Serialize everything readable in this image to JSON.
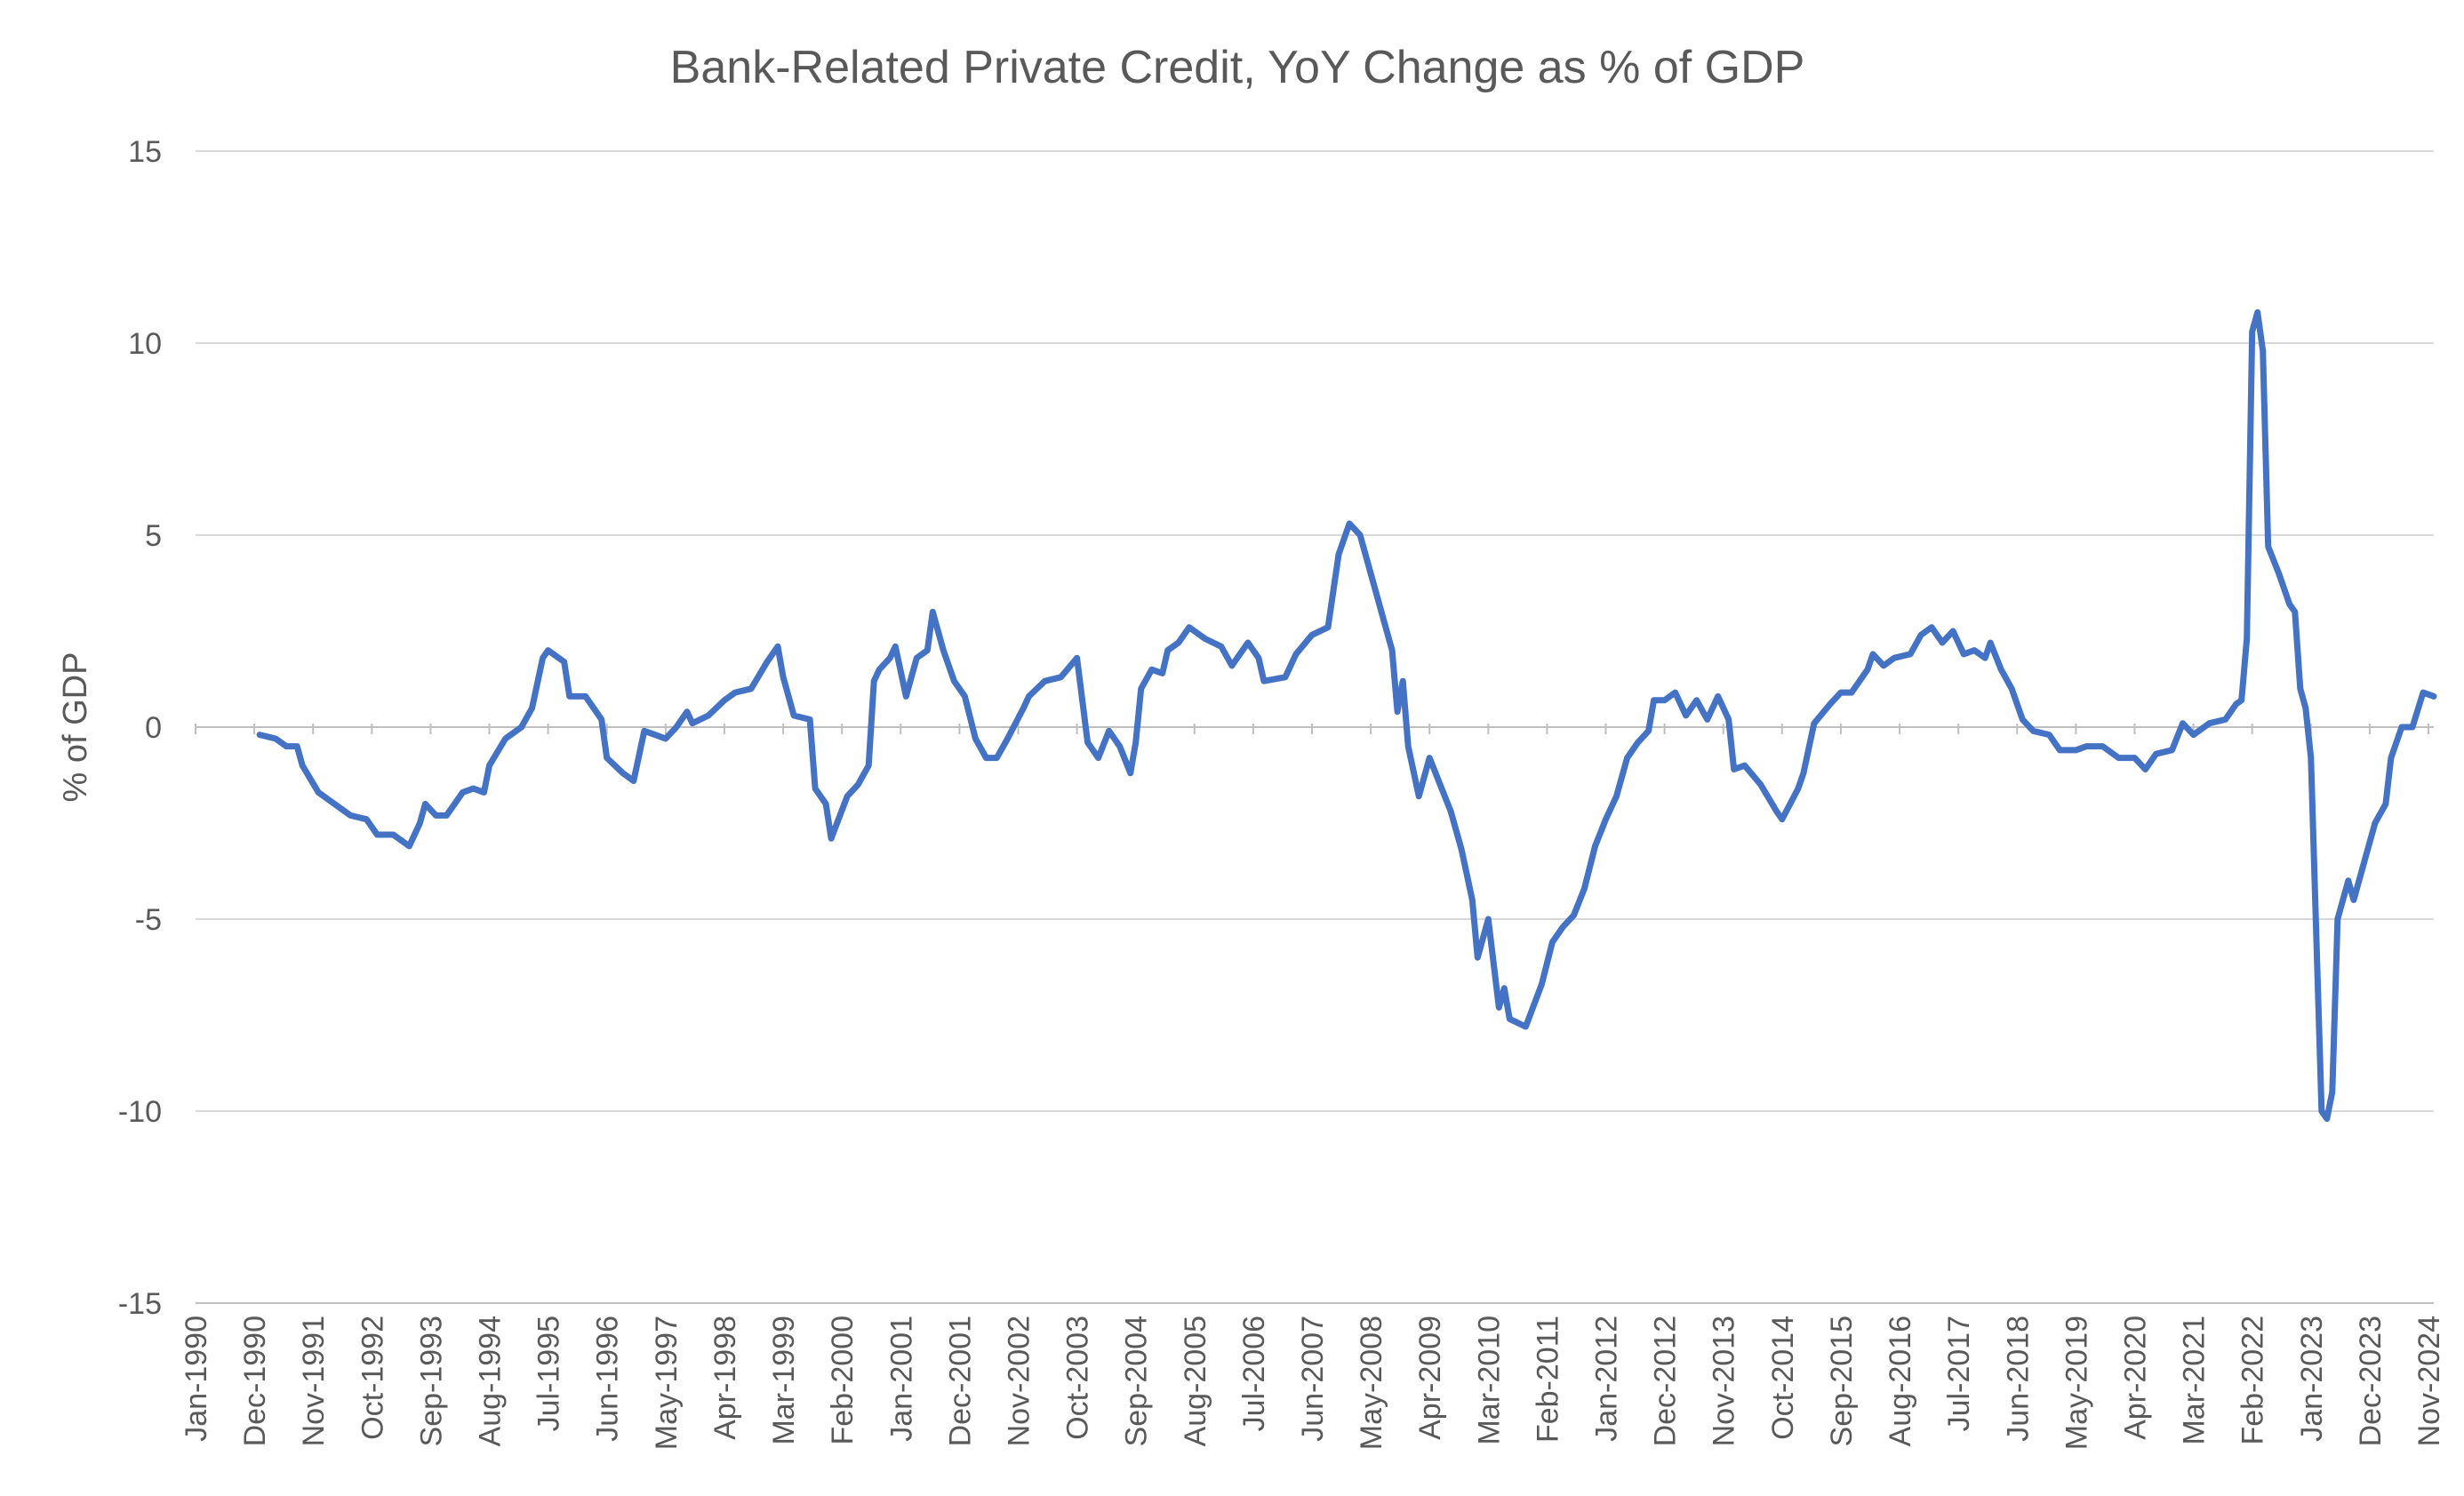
{
  "chart_data": {
    "type": "line",
    "title": "Bank-Related Private Credit, YoY Change as % of GDP",
    "xlabel": "",
    "ylabel": "% of GDP",
    "ylim": [
      -15,
      15
    ],
    "yticks": [
      15,
      10,
      5,
      0,
      -5,
      -10,
      -15
    ],
    "grid": true,
    "legend": "none",
    "x_axis": {
      "start": "Jan-1990",
      "end": "Dec-2024",
      "unit": "month"
    },
    "x_tick_labels": [
      "Jan-1990",
      "Dec-1990",
      "Nov-1991",
      "Oct-1992",
      "Sep-1993",
      "Aug-1994",
      "Jul-1995",
      "Jun-1996",
      "May-1997",
      "Apr-1998",
      "Mar-1999",
      "Feb-2000",
      "Jan-2001",
      "Dec-2001",
      "Nov-2002",
      "Oct-2003",
      "Sep-2004",
      "Aug-2005",
      "Jul-2006",
      "Jun-2007",
      "May-2008",
      "Apr-2009",
      "Mar-2010",
      "Feb-2011",
      "Jan-2012",
      "Dec-2012",
      "Nov-2013",
      "Oct-2014",
      "Sep-2015",
      "Aug-2016",
      "Jul-2017",
      "Jun-2018",
      "May-2019",
      "Apr-2020",
      "Mar-2021",
      "Feb-2022",
      "Jan-2023",
      "Dec-2023",
      "Nov-2024"
    ],
    "colors": {
      "series": "#4472c4",
      "text": "#595959",
      "grid": "#d9d9d9"
    },
    "series": [
      {
        "points": [
          [
            "Jan-1991",
            -0.2
          ],
          [
            "Apr-1991",
            -0.3
          ],
          [
            "Jun-1991",
            -0.5
          ],
          [
            "Aug-1991",
            -0.5
          ],
          [
            "Sep-1991",
            -1.0
          ],
          [
            "Dec-1991",
            -1.7
          ],
          [
            "Feb-1992",
            -1.9
          ],
          [
            "Jun-1992",
            -2.3
          ],
          [
            "Sep-1992",
            -2.4
          ],
          [
            "Nov-1992",
            -2.8
          ],
          [
            "Feb-1993",
            -2.8
          ],
          [
            "May-1993",
            -3.1
          ],
          [
            "Jul-1993",
            -2.5
          ],
          [
            "Aug-1993",
            -2.0
          ],
          [
            "Oct-1993",
            -2.3
          ],
          [
            "Dec-1993",
            -2.3
          ],
          [
            "Mar-1994",
            -1.7
          ],
          [
            "May-1994",
            -1.6
          ],
          [
            "Jul-1994",
            -1.7
          ],
          [
            "Aug-1994",
            -1.0
          ],
          [
            "Nov-1994",
            -0.3
          ],
          [
            "Feb-1995",
            0.0
          ],
          [
            "Apr-1995",
            0.5
          ],
          [
            "Jun-1995",
            1.8
          ],
          [
            "Jul-1995",
            2.0
          ],
          [
            "Sep-1995",
            1.8
          ],
          [
            "Oct-1995",
            1.7
          ],
          [
            "Nov-1995",
            0.8
          ],
          [
            "Feb-1996",
            0.8
          ],
          [
            "May-1996",
            0.2
          ],
          [
            "Jun-1996",
            -0.8
          ],
          [
            "Sep-1996",
            -1.2
          ],
          [
            "Nov-1996",
            -1.4
          ],
          [
            "Jan-1997",
            -0.1
          ],
          [
            "Mar-1997",
            -0.2
          ],
          [
            "May-1997",
            -0.3
          ],
          [
            "Jul-1997",
            0.0
          ],
          [
            "Sep-1997",
            0.4
          ],
          [
            "Oct-1997",
            0.1
          ],
          [
            "Jan-1998",
            0.3
          ],
          [
            "Apr-1998",
            0.7
          ],
          [
            "Jun-1998",
            0.9
          ],
          [
            "Sep-1998",
            1.0
          ],
          [
            "Dec-1998",
            1.7
          ],
          [
            "Feb-1999",
            2.1
          ],
          [
            "Mar-1999",
            1.3
          ],
          [
            "May-1999",
            0.3
          ],
          [
            "Aug-1999",
            0.2
          ],
          [
            "Sep-1999",
            -1.6
          ],
          [
            "Nov-1999",
            -2.0
          ],
          [
            "Dec-1999",
            -2.9
          ],
          [
            "Mar-2000",
            -1.8
          ],
          [
            "May-2000",
            -1.5
          ],
          [
            "Jul-2000",
            -1.0
          ],
          [
            "Aug-2000",
            1.2
          ],
          [
            "Sep-2000",
            1.5
          ],
          [
            "Nov-2000",
            1.8
          ],
          [
            "Dec-2000",
            2.1
          ],
          [
            "Feb-2001",
            0.8
          ],
          [
            "Apr-2001",
            1.8
          ],
          [
            "Jun-2001",
            2.0
          ],
          [
            "Jul-2001",
            3.0
          ],
          [
            "Sep-2001",
            2.0
          ],
          [
            "Nov-2001",
            1.2
          ],
          [
            "Jan-2002",
            0.8
          ],
          [
            "Mar-2002",
            -0.3
          ],
          [
            "May-2002",
            -0.8
          ],
          [
            "Jul-2002",
            -0.8
          ],
          [
            "Sep-2002",
            -0.3
          ],
          [
            "Dec-2002",
            0.5
          ],
          [
            "Jan-2003",
            0.8
          ],
          [
            "Apr-2003",
            1.2
          ],
          [
            "Jul-2003",
            1.3
          ],
          [
            "Oct-2003",
            1.8
          ],
          [
            "Dec-2003",
            -0.4
          ],
          [
            "Feb-2004",
            -0.8
          ],
          [
            "Apr-2004",
            -0.1
          ],
          [
            "Jun-2004",
            -0.5
          ],
          [
            "Aug-2004",
            -1.2
          ],
          [
            "Sep-2004",
            -0.4
          ],
          [
            "Oct-2004",
            1.0
          ],
          [
            "Dec-2004",
            1.5
          ],
          [
            "Feb-2005",
            1.4
          ],
          [
            "Mar-2005",
            2.0
          ],
          [
            "May-2005",
            2.2
          ],
          [
            "Jul-2005",
            2.6
          ],
          [
            "Oct-2005",
            2.3
          ],
          [
            "Jan-2006",
            2.1
          ],
          [
            "Mar-2006",
            1.6
          ],
          [
            "Apr-2006",
            1.8
          ],
          [
            "Jun-2006",
            2.2
          ],
          [
            "Aug-2006",
            1.8
          ],
          [
            "Sep-2006",
            1.2
          ],
          [
            "Jan-2007",
            1.3
          ],
          [
            "Mar-2007",
            1.9
          ],
          [
            "Jun-2007",
            2.4
          ],
          [
            "Sep-2007",
            2.6
          ],
          [
            "Nov-2007",
            4.5
          ],
          [
            "Jan-2008",
            5.3
          ],
          [
            "Mar-2008",
            5.0
          ],
          [
            "Jun-2008",
            3.5
          ],
          [
            "Aug-2008",
            2.5
          ],
          [
            "Sep-2008",
            2.0
          ],
          [
            "Oct-2008",
            0.4
          ],
          [
            "Nov-2008",
            1.2
          ],
          [
            "Dec-2008",
            -0.5
          ],
          [
            "Feb-2009",
            -1.8
          ],
          [
            "Apr-2009",
            -0.8
          ],
          [
            "Jun-2009",
            -1.5
          ],
          [
            "Aug-2009",
            -2.2
          ],
          [
            "Oct-2009",
            -3.2
          ],
          [
            "Dec-2009",
            -4.5
          ],
          [
            "Jan-2010",
            -6.0
          ],
          [
            "Mar-2010",
            -5.0
          ],
          [
            "May-2010",
            -7.3
          ],
          [
            "Jun-2010",
            -6.8
          ],
          [
            "Jul-2010",
            -7.6
          ],
          [
            "Oct-2010",
            -7.8
          ],
          [
            "Jan-2011",
            -6.7
          ],
          [
            "Mar-2011",
            -5.6
          ],
          [
            "May-2011",
            -5.2
          ],
          [
            "Jul-2011",
            -4.9
          ],
          [
            "Sep-2011",
            -4.2
          ],
          [
            "Nov-2011",
            -3.1
          ],
          [
            "Jan-2012",
            -2.4
          ],
          [
            "Mar-2012",
            -1.8
          ],
          [
            "May-2012",
            -0.8
          ],
          [
            "Jul-2012",
            -0.4
          ],
          [
            "Sep-2012",
            -0.1
          ],
          [
            "Oct-2012",
            0.7
          ],
          [
            "Dec-2012",
            0.7
          ],
          [
            "Feb-2013",
            0.9
          ],
          [
            "Apr-2013",
            0.3
          ],
          [
            "Jun-2013",
            0.7
          ],
          [
            "Aug-2013",
            0.2
          ],
          [
            "Oct-2013",
            0.8
          ],
          [
            "Dec-2013",
            0.2
          ],
          [
            "Jan-2014",
            -1.1
          ],
          [
            "Mar-2014",
            -1.0
          ],
          [
            "Jun-2014",
            -1.5
          ],
          [
            "Sep-2014",
            -2.2
          ],
          [
            "Oct-2014",
            -2.4
          ],
          [
            "Jan-2015",
            -1.6
          ],
          [
            "Feb-2015",
            -1.2
          ],
          [
            "Apr-2015",
            0.1
          ],
          [
            "Jul-2015",
            0.6
          ],
          [
            "Sep-2015",
            0.9
          ],
          [
            "Nov-2015",
            0.9
          ],
          [
            "Feb-2016",
            1.5
          ],
          [
            "Mar-2016",
            1.9
          ],
          [
            "May-2016",
            1.6
          ],
          [
            "Jul-2016",
            1.8
          ],
          [
            "Oct-2016",
            1.9
          ],
          [
            "Dec-2016",
            2.4
          ],
          [
            "Feb-2017",
            2.6
          ],
          [
            "Apr-2017",
            2.2
          ],
          [
            "Jun-2017",
            2.5
          ],
          [
            "Aug-2017",
            1.9
          ],
          [
            "Oct-2017",
            2.0
          ],
          [
            "Dec-2017",
            1.8
          ],
          [
            "Jan-2018",
            2.2
          ],
          [
            "Mar-2018",
            1.5
          ],
          [
            "May-2018",
            1.0
          ],
          [
            "Jul-2018",
            0.2
          ],
          [
            "Sep-2018",
            -0.1
          ],
          [
            "Dec-2018",
            -0.2
          ],
          [
            "Feb-2019",
            -0.6
          ],
          [
            "May-2019",
            -0.6
          ],
          [
            "Jul-2019",
            -0.5
          ],
          [
            "Oct-2019",
            -0.5
          ],
          [
            "Jan-2020",
            -0.8
          ],
          [
            "Apr-2020",
            -0.8
          ],
          [
            "Jun-2020",
            -1.1
          ],
          [
            "Aug-2020",
            -0.7
          ],
          [
            "Nov-2020",
            -0.6
          ],
          [
            "Jan-2021",
            0.1
          ],
          [
            "Mar-2021",
            -0.2
          ],
          [
            "Jun-2021",
            0.1
          ],
          [
            "Sep-2021",
            0.2
          ],
          [
            "Nov-2021",
            0.6
          ],
          [
            "Dec-2021",
            0.7
          ],
          [
            "Jan-2022",
            2.3
          ],
          [
            "Feb-2022",
            10.3
          ],
          [
            "Mar-2022",
            10.8
          ],
          [
            "Apr-2022",
            9.8
          ],
          [
            "May-2022",
            4.7
          ],
          [
            "Jul-2022",
            4.0
          ],
          [
            "Sep-2022",
            3.2
          ],
          [
            "Oct-2022",
            3.0
          ],
          [
            "Nov-2022",
            1.0
          ],
          [
            "Dec-2022",
            0.5
          ],
          [
            "Jan-2023",
            -0.8
          ],
          [
            "Mar-2023",
            -10.0
          ],
          [
            "Apr-2023",
            -10.2
          ],
          [
            "May-2023",
            -9.5
          ],
          [
            "Jun-2023",
            -5.0
          ],
          [
            "Aug-2023",
            -4.0
          ],
          [
            "Sep-2023",
            -4.5
          ],
          [
            "Nov-2023",
            -3.5
          ],
          [
            "Jan-2024",
            -2.5
          ],
          [
            "Mar-2024",
            -2.0
          ],
          [
            "Apr-2024",
            -0.8
          ],
          [
            "Jun-2024",
            0.0
          ],
          [
            "Aug-2024",
            0.0
          ],
          [
            "Oct-2024",
            0.9
          ],
          [
            "Dec-2024",
            0.8
          ]
        ]
      }
    ]
  }
}
